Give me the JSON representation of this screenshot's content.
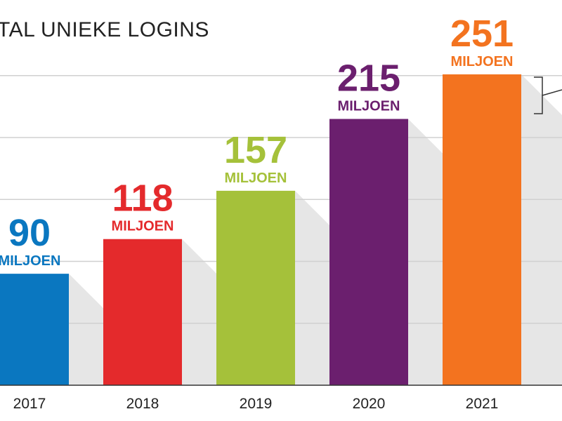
{
  "chart_data": {
    "type": "bar",
    "title": "TAL UNIEKE LOGINS",
    "categories": [
      "2017",
      "2018",
      "2019",
      "2020",
      "2021"
    ],
    "values": [
      90,
      118,
      157,
      215,
      251
    ],
    "value_labels": [
      "90",
      "118",
      "157",
      "215",
      "251"
    ],
    "unit_label": "MILJOEN",
    "bar_colors": [
      "#0a77c0",
      "#e42a2c",
      "#a5c13a",
      "#6b1f6e",
      "#f3731f"
    ],
    "gridline_color": "#d0d0d0",
    "shadow_color": "#e6e6e6",
    "ylim": [
      0,
      300
    ],
    "grid": true,
    "xlabel": "",
    "ylabel": ""
  }
}
